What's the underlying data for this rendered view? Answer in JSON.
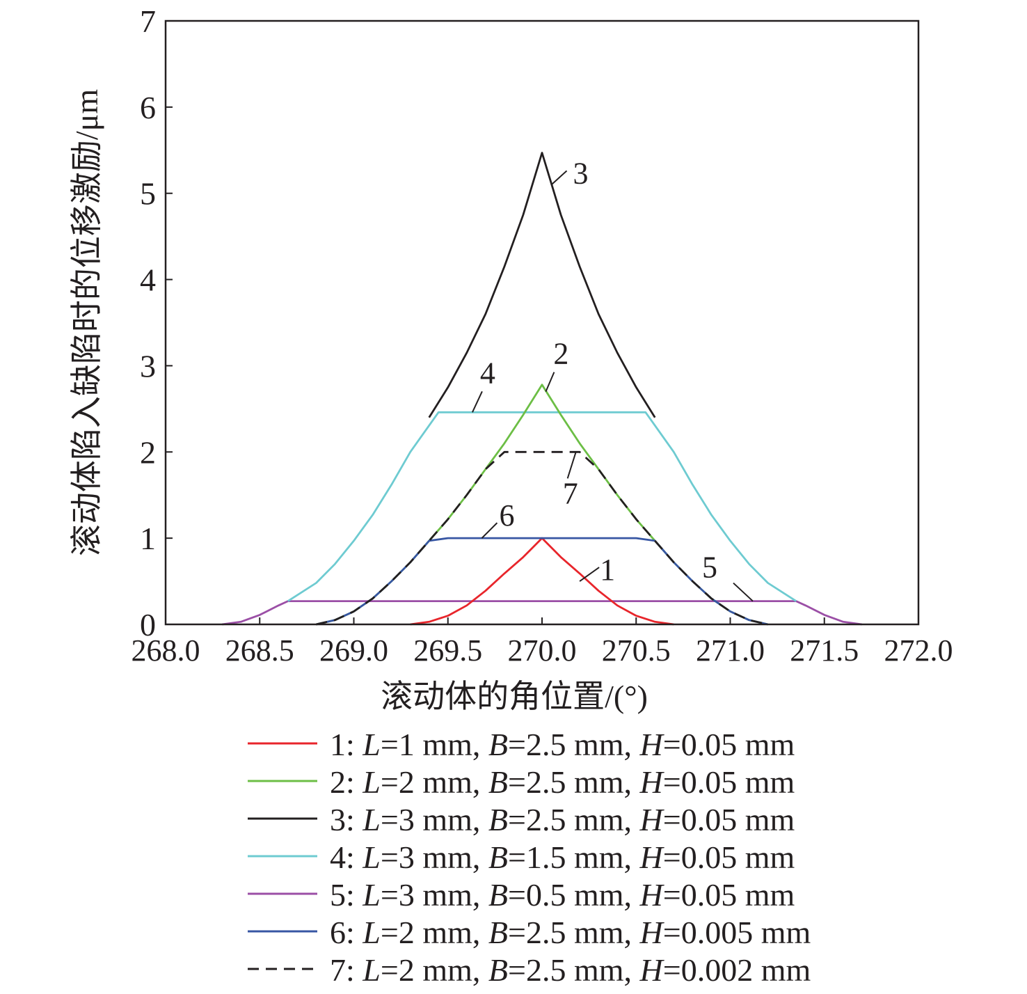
{
  "chart_data": {
    "type": "line",
    "xlabel": "滚动体的角位置/(°)",
    "ylabel": "滚动体陷入缺陷时的位移激励/μm",
    "xlim": [
      268.0,
      272.0
    ],
    "ylim": [
      0,
      7
    ],
    "x_ticks": [
      "268.0",
      "268.5",
      "269.0",
      "269.5",
      "270.0",
      "270.5",
      "271.0",
      "271.5",
      "272.0"
    ],
    "y_ticks": [
      "0",
      "1",
      "2",
      "3",
      "4",
      "5",
      "6",
      "7"
    ],
    "grid": false,
    "legend_position": "bottom",
    "series": [
      {
        "id": "1",
        "label": "1",
        "legend": {
          "num": "1: ",
          "L": "1 mm",
          "B": "2.5 mm",
          "H": "0.05 mm"
        },
        "color": "#e8252b",
        "dash": "solid",
        "x": [
          269.3,
          269.4,
          269.5,
          269.6,
          269.7,
          269.8,
          269.9,
          270.0,
          270.1,
          270.2,
          270.3,
          270.4,
          270.5,
          270.6,
          270.7
        ],
        "y": [
          0.0,
          0.03,
          0.1,
          0.22,
          0.39,
          0.59,
          0.78,
          1.0,
          0.78,
          0.59,
          0.39,
          0.22,
          0.1,
          0.03,
          0.0
        ]
      },
      {
        "id": "2",
        "label": "2",
        "legend": {
          "num": "2: ",
          "L": "2 mm",
          "B": "2.5 mm",
          "H": "0.05 mm"
        },
        "color": "#6cbe45",
        "dash": "solid",
        "x": [
          268.8,
          268.9,
          269.0,
          269.1,
          269.2,
          269.3,
          269.4,
          269.5,
          269.6,
          269.7,
          269.8,
          269.9,
          270.0,
          270.1,
          270.2,
          270.3,
          270.4,
          270.5,
          270.6,
          270.7,
          270.8,
          270.9,
          271.0,
          271.1,
          271.2
        ],
        "y": [
          0.0,
          0.05,
          0.15,
          0.3,
          0.5,
          0.72,
          0.97,
          1.22,
          1.5,
          1.8,
          2.1,
          2.43,
          2.78,
          2.43,
          2.1,
          1.8,
          1.5,
          1.22,
          0.97,
          0.72,
          0.5,
          0.3,
          0.15,
          0.05,
          0.0
        ]
      },
      {
        "id": "3",
        "label": "3",
        "legend": {
          "num": "3: ",
          "L": "3 mm",
          "B": "2.5 mm",
          "H": "0.05 mm"
        },
        "color": "#231f20",
        "dash": "solid",
        "x": [
          269.4,
          269.5,
          269.6,
          269.7,
          269.8,
          269.9,
          270.0,
          270.1,
          270.2,
          270.3,
          270.4,
          270.5,
          270.6
        ],
        "y": [
          2.4,
          2.75,
          3.15,
          3.6,
          4.15,
          4.75,
          5.47,
          4.75,
          4.15,
          3.6,
          3.15,
          2.75,
          2.4
        ]
      },
      {
        "id": "4",
        "label": "4",
        "legend": {
          "num": "4: ",
          "L": "3 mm",
          "B": "1.5 mm",
          "H": "0.05 mm"
        },
        "color": "#6ecbd1",
        "dash": "solid",
        "x": [
          268.65,
          268.8,
          268.9,
          269.0,
          269.1,
          269.2,
          269.3,
          269.45,
          270.55,
          270.7,
          270.8,
          270.9,
          271.0,
          271.1,
          271.2,
          271.35
        ],
        "y": [
          0.27,
          0.48,
          0.7,
          0.97,
          1.27,
          1.62,
          2.0,
          2.46,
          2.46,
          2.0,
          1.62,
          1.27,
          0.97,
          0.7,
          0.48,
          0.27
        ]
      },
      {
        "id": "5",
        "label": "5",
        "legend": {
          "num": "5: ",
          "L": "3 mm",
          "B": "0.5 mm",
          "H": "0.05 mm"
        },
        "color": "#9b4fa6",
        "dash": "solid",
        "x": [
          268.3,
          268.4,
          268.5,
          268.6,
          268.65,
          271.35,
          271.4,
          271.5,
          271.6,
          271.7
        ],
        "y": [
          0.0,
          0.03,
          0.11,
          0.22,
          0.27,
          0.27,
          0.22,
          0.11,
          0.03,
          0.0
        ]
      },
      {
        "id": "6",
        "label": "6",
        "legend": {
          "num": "6: ",
          "L": "2 mm",
          "B": "2.5 mm",
          "H": "0.005 mm"
        },
        "color": "#3756a3",
        "dash": "solid",
        "x": [
          268.8,
          268.9,
          269.0,
          269.1,
          269.2,
          269.3,
          269.4,
          269.5,
          270.5,
          270.6,
          270.7,
          270.8,
          270.9,
          271.0,
          271.1,
          271.2
        ],
        "y": [
          0.0,
          0.05,
          0.15,
          0.3,
          0.5,
          0.72,
          0.97,
          1.0,
          1.0,
          0.97,
          0.72,
          0.5,
          0.3,
          0.15,
          0.05,
          0.0
        ]
      },
      {
        "id": "7",
        "label": "7",
        "legend": {
          "num": "7: ",
          "L": "2 mm",
          "B": "2.5 mm",
          "H": "0.002 mm"
        },
        "color": "#231f20",
        "dash": "dashed",
        "x": [
          268.8,
          268.9,
          269.0,
          269.1,
          269.2,
          269.3,
          269.4,
          269.5,
          269.6,
          269.7,
          269.8,
          270.2,
          270.3,
          270.4,
          270.5,
          270.6,
          270.7,
          270.8,
          270.9,
          271.0,
          271.1,
          271.2
        ],
        "y": [
          0.0,
          0.05,
          0.15,
          0.3,
          0.5,
          0.72,
          0.97,
          1.22,
          1.5,
          1.8,
          2.0,
          2.0,
          1.8,
          1.5,
          1.22,
          0.97,
          0.72,
          0.5,
          0.3,
          0.15,
          0.05,
          0.0
        ]
      }
    ],
    "annotations": [
      {
        "text": "1",
        "series": "1",
        "point": [
          270.2,
          0.5
        ]
      },
      {
        "text": "2",
        "series": "2",
        "point": [
          270.02,
          2.7
        ]
      },
      {
        "text": "3",
        "series": "3",
        "point": [
          270.05,
          5.1
        ]
      },
      {
        "text": "4",
        "series": "4",
        "point": [
          269.63,
          2.46
        ]
      },
      {
        "text": "5",
        "series": "5",
        "point": [
          271.12,
          0.27
        ]
      },
      {
        "text": "6",
        "series": "6",
        "point": [
          269.68,
          1.0
        ]
      },
      {
        "text": "7",
        "series": "7",
        "point": [
          270.18,
          2.0
        ]
      }
    ]
  }
}
